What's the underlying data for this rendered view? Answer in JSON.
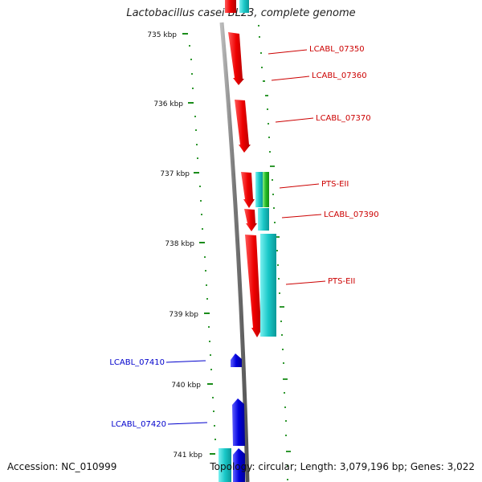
{
  "title": "Lactobacillus casei BL23, complete genome",
  "accession": "Accession: NC_010999",
  "summary": "Topology: circular; Length: 3,079,196 bp; Genes: 3,022",
  "colors": {
    "background": "#ffffff",
    "backbone": "#8a8a8a",
    "tick": "#1a8c1a",
    "forward_gene": "#e00000",
    "reverse_gene": "#0000dd",
    "cyan_feature": "#19c8c8",
    "green_feature": "#22bb22",
    "forward_label": "#cc0000",
    "reverse_label": "#0000cc"
  },
  "kbp_ticks": [
    {
      "label": "735 kbp",
      "kbp": 735
    },
    {
      "label": "736 kbp",
      "kbp": 736
    },
    {
      "label": "737 kbp",
      "kbp": 737
    },
    {
      "label": "738 kbp",
      "kbp": 738
    },
    {
      "label": "739 kbp",
      "kbp": 739
    },
    {
      "label": "740 kbp",
      "kbp": 740
    },
    {
      "label": "741 kbp",
      "kbp": 741
    }
  ],
  "genes": [
    {
      "name": "LCABL_07350",
      "strand": "forward"
    },
    {
      "name": "LCABL_07360",
      "strand": "forward"
    },
    {
      "name": "LCABL_07370",
      "strand": "forward"
    },
    {
      "name": "PTS-EII",
      "strand": "forward"
    },
    {
      "name": "LCABL_07390",
      "strand": "forward"
    },
    {
      "name": "PTS-EII",
      "strand": "forward"
    },
    {
      "name": "LCABL_07410",
      "strand": "reverse"
    },
    {
      "name": "LCABL_07420",
      "strand": "reverse"
    }
  ]
}
